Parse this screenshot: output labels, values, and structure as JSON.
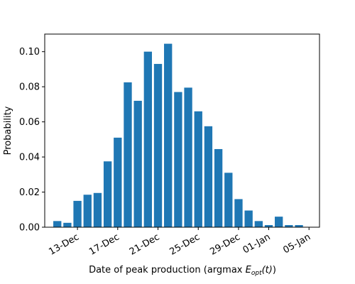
{
  "chart_data": {
    "type": "bar",
    "title": "",
    "xlabel_prefix": "Date of peak production (argmax ",
    "xlabel_math_base": "E",
    "xlabel_math_sub": "opt",
    "xlabel_math_arg": "(t)",
    "xlabel_suffix": ")",
    "ylabel": "Probability",
    "bar_color": "#1f77b4",
    "x": [
      "2013-12-11",
      "2013-12-12",
      "2013-12-13",
      "2013-12-14",
      "2013-12-15",
      "2013-12-16",
      "2013-12-17",
      "2013-12-18",
      "2013-12-19",
      "2013-12-20",
      "2013-12-21",
      "2013-12-22",
      "2013-12-23",
      "2013-12-24",
      "2013-12-25",
      "2013-12-26",
      "2013-12-27",
      "2013-12-28",
      "2013-12-29",
      "2013-12-30",
      "2013-12-31",
      "2014-01-01",
      "2014-01-02",
      "2014-01-03",
      "2014-01-04",
      "2014-01-05"
    ],
    "values": [
      0.0035,
      0.0025,
      0.015,
      0.0185,
      0.0195,
      0.0375,
      0.051,
      0.0825,
      0.072,
      0.1,
      0.093,
      0.1045,
      0.077,
      0.0795,
      0.066,
      0.0575,
      0.0445,
      0.031,
      0.016,
      0.0095,
      0.0035,
      0.0012,
      0.006,
      0.0012,
      0.0012,
      0.0
    ],
    "xlim": [
      "2013-12-09T18:00",
      "2014-01-06T01:00"
    ],
    "ylim": [
      0,
      0.11
    ],
    "x_ticks": [
      {
        "date": "2013-12-13",
        "label": "13-Dec"
      },
      {
        "date": "2013-12-17",
        "label": "17-Dec"
      },
      {
        "date": "2013-12-21",
        "label": "21-Dec"
      },
      {
        "date": "2013-12-25",
        "label": "25-Dec"
      },
      {
        "date": "2013-12-29",
        "label": "29-Dec"
      },
      {
        "date": "2014-01-01",
        "label": "01-Jan"
      },
      {
        "date": "2014-01-05",
        "label": "05-Jan"
      }
    ],
    "y_ticks": [
      {
        "value": 0.0,
        "label": "0.00"
      },
      {
        "value": 0.02,
        "label": "0.02"
      },
      {
        "value": 0.04,
        "label": "0.04"
      },
      {
        "value": 0.06,
        "label": "0.06"
      },
      {
        "value": 0.08,
        "label": "0.08"
      },
      {
        "value": 0.1,
        "label": "0.10"
      }
    ],
    "grid": false,
    "legend": "none"
  }
}
